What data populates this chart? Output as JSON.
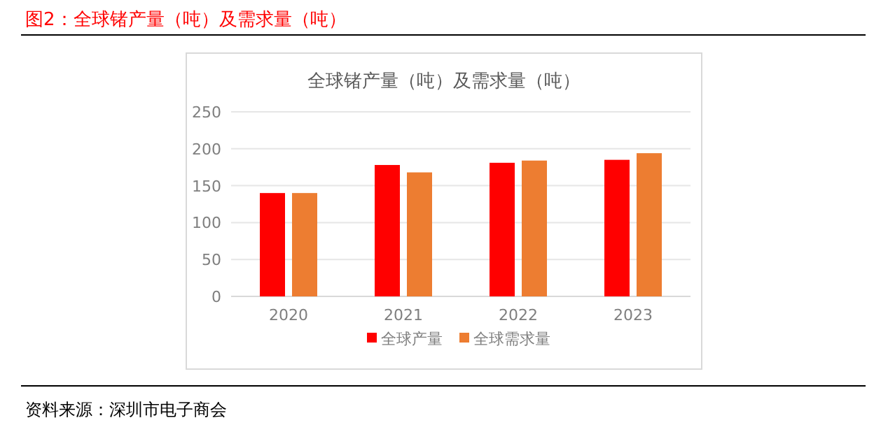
{
  "chart_data": {
    "type": "bar",
    "title": "图2：全球锗产量（吨）及需求量（吨）",
    "subtitle": "全球锗产量（吨）及需求量（吨）",
    "categories": [
      "2020",
      "2021",
      "2022",
      "2023"
    ],
    "series": [
      {
        "name": "全球产量",
        "color": "#ff0000",
        "values": [
          140,
          178,
          181,
          185
        ]
      },
      {
        "name": "全球需求量",
        "color": "#ed7d31",
        "values": [
          140,
          168,
          184,
          194
        ]
      }
    ],
    "ylim": [
      0,
      250
    ],
    "yticks": [
      0,
      50,
      100,
      150,
      200,
      250
    ],
    "grid": "y",
    "legend": "bottom",
    "annotations": [
      "资料来源：深圳市电子商会"
    ]
  }
}
